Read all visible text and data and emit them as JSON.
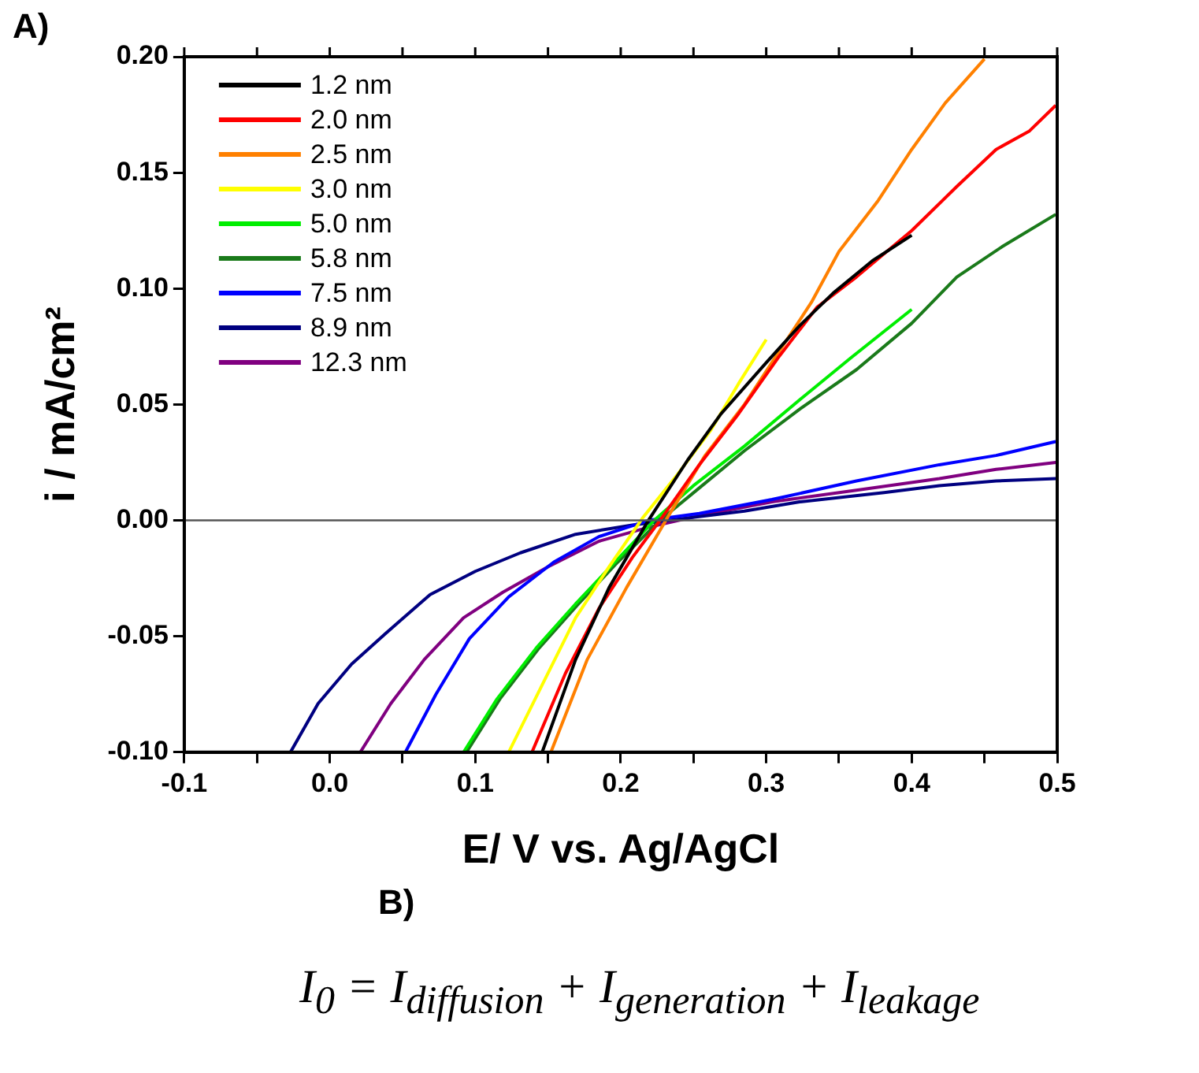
{
  "chart_data": {
    "type": "line",
    "xlabel": "E/ V vs. Ag/AgCl",
    "ylabel": "i / mA/cm²",
    "annotations": [
      "A)",
      "B)",
      "I$_{0}$ = I$_{diffusion}$ + I$_{generation}$ + I$_{leakage}$"
    ],
    "xlim": [
      -0.1,
      0.5
    ],
    "ylim": [
      -0.1,
      0.2
    ],
    "xticks": [
      -0.1,
      {
        "value": -0.05,
        "label": null
      },
      {
        "value": 0,
        "label": "0.0"
      },
      {
        "value": 0.05,
        "label": null
      },
      0.1,
      {
        "value": 0.15,
        "label": null
      },
      0.2,
      {
        "value": 0.25,
        "label": null
      },
      0.3,
      {
        "value": 0.35,
        "label": null
      },
      0.4,
      {
        "value": 0.45,
        "label": null
      },
      0.5
    ],
    "yticks": [
      {
        "value": -0.1,
        "label": "-0.10"
      },
      {
        "value": -0.05,
        "label": "-0.05"
      },
      {
        "value": 0,
        "label": "0.00"
      },
      {
        "value": 0.05,
        "label": "0.05"
      },
      {
        "value": 0.1,
        "label": "0.10"
      },
      {
        "value": 0.15,
        "label": "0.15"
      },
      {
        "value": 0.2,
        "label": "0.20"
      }
    ],
    "grid": false,
    "legend": "top left",
    "marker": "none",
    "line_style": "solid",
    "ref_lines": [
      {
        "axis": "y",
        "value": 0,
        "color": "#555555"
      }
    ],
    "series": [
      {
        "name": "1.2 nm",
        "color": "#000000",
        "x": [
          0.146,
          0.169,
          0.192,
          0.219,
          0.246,
          0.269,
          0.3,
          0.323,
          0.346,
          0.373,
          0.4
        ],
        "values": [
          -0.1,
          -0.06,
          -0.029,
          0.0,
          0.026,
          0.046,
          0.068,
          0.084,
          0.098,
          0.112,
          0.123
        ]
      },
      {
        "name": "2.0 nm",
        "color": "#ff0000",
        "x": [
          0.139,
          0.162,
          0.185,
          0.208,
          0.227,
          0.254,
          0.281,
          0.308,
          0.335,
          0.362,
          0.4,
          0.431,
          0.458,
          0.481,
          0.499
        ],
        "values": [
          -0.1,
          -0.066,
          -0.038,
          -0.016,
          0.0,
          0.024,
          0.046,
          0.07,
          0.092,
          0.105,
          0.125,
          0.144,
          0.16,
          0.168,
          0.179
        ]
      },
      {
        "name": "2.5 nm",
        "color": "#ff8000",
        "x": [
          0.152,
          0.177,
          0.204,
          0.231,
          0.258,
          0.285,
          0.308,
          0.331,
          0.35,
          0.377,
          0.4,
          0.423,
          0.45
        ],
        "values": [
          -0.1,
          -0.06,
          -0.029,
          0.0,
          0.028,
          0.05,
          0.072,
          0.094,
          0.116,
          0.138,
          0.16,
          0.18,
          0.199
        ]
      },
      {
        "name": "3.0 nm",
        "color": "#ffff00",
        "x": [
          0.123,
          0.146,
          0.169,
          0.192,
          0.215,
          0.238,
          0.262,
          0.281,
          0.3
        ],
        "values": [
          -0.1,
          -0.071,
          -0.042,
          -0.02,
          0.001,
          0.019,
          0.039,
          0.059,
          0.078
        ]
      },
      {
        "name": "5.0 nm",
        "color": "#00ee00",
        "x": [
          0.092,
          0.115,
          0.142,
          0.169,
          0.196,
          0.223,
          0.25,
          0.285,
          0.323,
          0.358,
          0.4
        ],
        "values": [
          -0.1,
          -0.077,
          -0.055,
          -0.036,
          -0.018,
          0.0,
          0.015,
          0.032,
          0.052,
          0.07,
          0.091
        ]
      },
      {
        "name": "5.8 nm",
        "color": "#1a7a1a",
        "x": [
          0.094,
          0.117,
          0.144,
          0.171,
          0.198,
          0.227,
          0.254,
          0.285,
          0.323,
          0.362,
          0.4,
          0.431,
          0.462,
          0.499
        ],
        "values": [
          -0.1,
          -0.077,
          -0.055,
          -0.036,
          -0.018,
          0.0,
          0.014,
          0.03,
          0.048,
          0.065,
          0.085,
          0.105,
          0.118,
          0.132
        ]
      },
      {
        "name": "7.5 nm",
        "color": "#0000ff",
        "x": [
          0.052,
          0.073,
          0.096,
          0.123,
          0.154,
          0.185,
          0.219,
          0.254,
          0.304,
          0.362,
          0.419,
          0.458,
          0.499
        ],
        "values": [
          -0.1,
          -0.075,
          -0.051,
          -0.033,
          -0.018,
          -0.007,
          0.0,
          0.003,
          0.009,
          0.017,
          0.024,
          0.028,
          0.034
        ]
      },
      {
        "name": "8.9 nm",
        "color": "#000080",
        "x": [
          -0.027,
          -0.008,
          0.015,
          0.038,
          0.069,
          0.1,
          0.131,
          0.169,
          0.208,
          0.246,
          0.285,
          0.323,
          0.381,
          0.419,
          0.458,
          0.499
        ],
        "values": [
          -0.1,
          -0.079,
          -0.062,
          -0.049,
          -0.032,
          -0.022,
          -0.014,
          -0.006,
          -0.002,
          0.001,
          0.004,
          0.008,
          0.012,
          0.015,
          0.017,
          0.018
        ]
      },
      {
        "name": "12.3 nm",
        "color": "#800080",
        "x": [
          0.021,
          0.042,
          0.065,
          0.092,
          0.119,
          0.15,
          0.185,
          0.219,
          0.254,
          0.304,
          0.362,
          0.419,
          0.458,
          0.499
        ],
        "values": [
          -0.1,
          -0.079,
          -0.06,
          -0.042,
          -0.031,
          -0.02,
          -0.009,
          -0.003,
          0.002,
          0.008,
          0.013,
          0.018,
          0.022,
          0.025
        ]
      }
    ]
  }
}
